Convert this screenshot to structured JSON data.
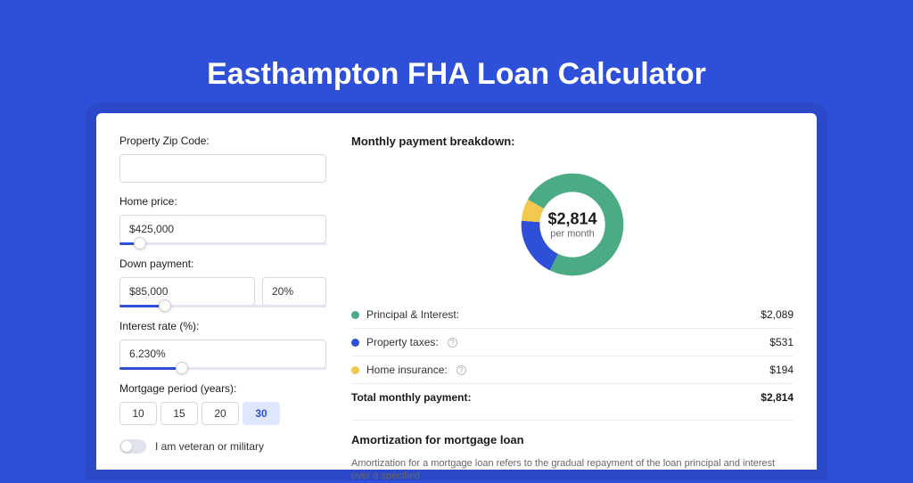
{
  "page": {
    "background_color": "#2e4fd8",
    "title": "Easthampton FHA Loan Calculator",
    "title_color": "#ffffff",
    "card_background": "#ffffff"
  },
  "form": {
    "zip": {
      "label": "Property Zip Code:",
      "value": ""
    },
    "home_price": {
      "label": "Home price:",
      "value": "$425,000",
      "slider_pct": 10
    },
    "down_payment": {
      "label": "Down payment:",
      "amount": "$85,000",
      "percent": "20%",
      "slider_pct": 22
    },
    "interest_rate": {
      "label": "Interest rate (%):",
      "value": "6.230%",
      "slider_pct": 30
    },
    "mortgage_period": {
      "label": "Mortgage period (years):",
      "options": [
        "10",
        "15",
        "20",
        "30"
      ],
      "selected": "30"
    },
    "veteran": {
      "label": "I am veteran or military",
      "checked": false
    }
  },
  "breakdown": {
    "heading": "Monthly payment breakdown:",
    "donut": {
      "center_amount": "$2,814",
      "center_sub": "per month",
      "slices": [
        {
          "name": "principal_interest",
          "value": 2089,
          "pct": 74.2,
          "color": "#4bab84"
        },
        {
          "name": "property_taxes",
          "value": 531,
          "pct": 18.9,
          "color": "#2e4fd8"
        },
        {
          "name": "home_insurance",
          "value": 194,
          "pct": 6.9,
          "color": "#f2c94c"
        }
      ],
      "ring_width": 20
    },
    "rows": [
      {
        "color": "#4bab84",
        "label": "Principal & Interest:",
        "value": "$2,089",
        "info": false
      },
      {
        "color": "#2e4fd8",
        "label": "Property taxes:",
        "value": "$531",
        "info": true
      },
      {
        "color": "#f2c94c",
        "label": "Home insurance:",
        "value": "$194",
        "info": true
      }
    ],
    "total": {
      "label": "Total monthly payment:",
      "value": "$2,814"
    }
  },
  "amortization": {
    "heading": "Amortization for mortgage loan",
    "text": "Amortization for a mortgage loan refers to the gradual repayment of the loan principal and interest over a specified"
  }
}
